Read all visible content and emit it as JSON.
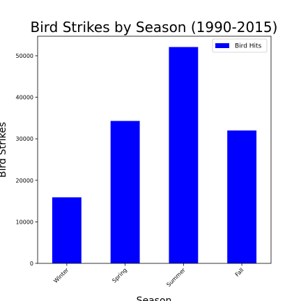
{
  "chart_data": {
    "type": "bar",
    "title": "Bird Strikes by Season (1990-2015)",
    "xlabel": "Season",
    "ylabel": "Bird Strikes",
    "categories": [
      "Winter",
      "Spring",
      "Summer",
      "Fall"
    ],
    "series": [
      {
        "name": "Bird Hits",
        "values": [
          15900,
          34300,
          52100,
          32000
        ],
        "color": "#0000ff"
      }
    ],
    "ylim": [
      0,
      54700
    ],
    "yticks": [
      0,
      10000,
      20000,
      30000,
      40000,
      50000
    ],
    "grid": false,
    "legend_position": "top-right"
  }
}
